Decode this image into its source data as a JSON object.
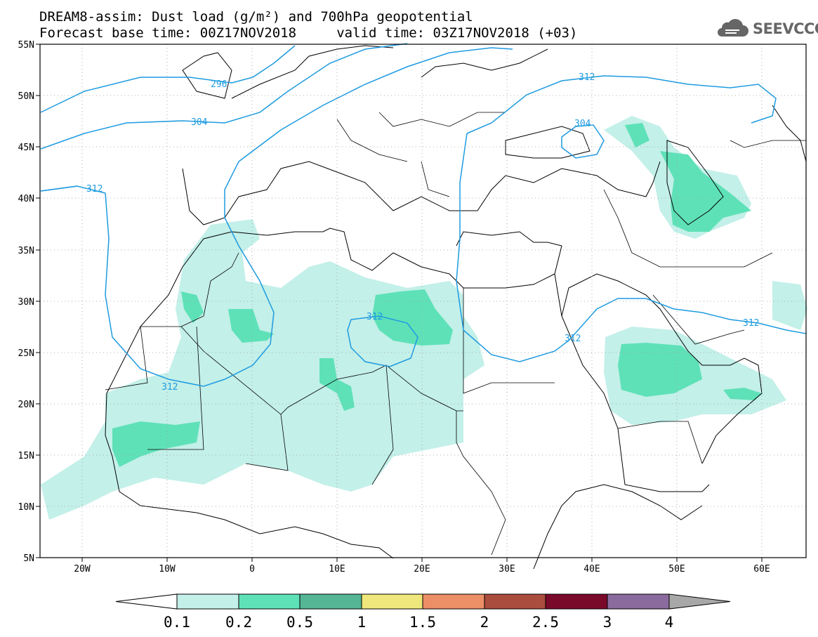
{
  "header": {
    "title_line1": "DREAM8-assim: Dust load (g/m²) and 700hPa geopotential",
    "title_line2": "Forecast base time: 00Z17NOV2018     valid time: 03Z17NOV2018 (+03)"
  },
  "logo": {
    "text": "SEEVCCC",
    "icon": "cloud-icon"
  },
  "map": {
    "lon_ticks": [
      "20W",
      "10W",
      "0",
      "10E",
      "20E",
      "30E",
      "40E",
      "50E",
      "60E"
    ],
    "lat_ticks": [
      "55N",
      "50N",
      "45N",
      "40N",
      "35N",
      "30N",
      "25N",
      "20N",
      "15N",
      "10N",
      "5N"
    ],
    "contour_labels": [
      "296",
      "304",
      "304",
      "312",
      "312",
      "312",
      "312",
      "312"
    ],
    "colors": {
      "land": "#000000",
      "contour": "#1e9be0",
      "frame": "#000000"
    }
  },
  "colorbar": {
    "labels": [
      "0.1",
      "0.2",
      "0.5",
      "1",
      "1.5",
      "2",
      "2.5",
      "3",
      "4"
    ],
    "colors": [
      "#c3f0e9",
      "#5fe1b8",
      "#55b695",
      "#f0e77c",
      "#ec8e66",
      "#aa4c3e",
      "#7a0a2a",
      "#8b6b9e",
      "#a8a8a8"
    ],
    "low_end_color": "#ffffff",
    "high_end_color": "#a8a8a8"
  }
}
